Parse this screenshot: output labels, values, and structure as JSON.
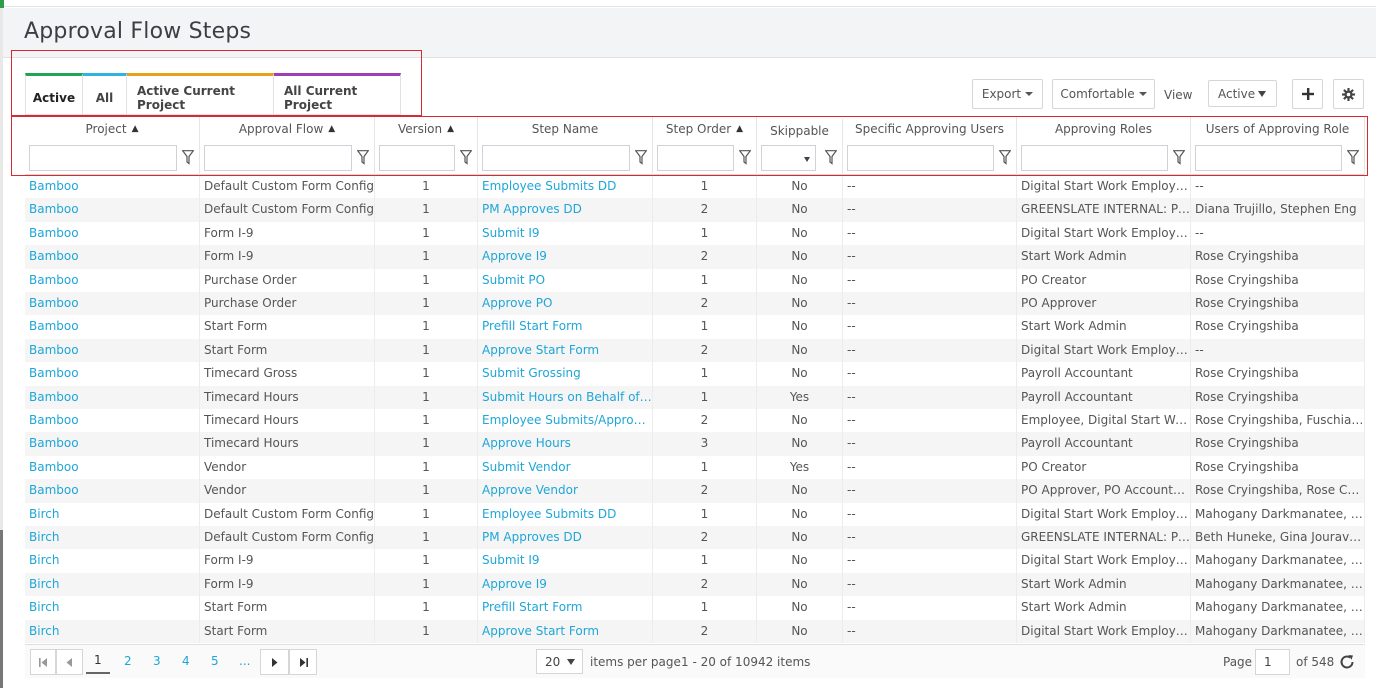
{
  "page": {
    "title": "Approval Flow Steps"
  },
  "tabs": [
    {
      "label": "Active",
      "active": true,
      "color": "#22a454"
    },
    {
      "label": "All",
      "color": "#2fb3e0"
    },
    {
      "label": "Active Current Project",
      "color": "#e8a21a"
    },
    {
      "label": "All Current Project",
      "color": "#9a3fb5"
    }
  ],
  "toolbar": {
    "export_label": "Export",
    "density_label": "Comfortable",
    "view_label": "View",
    "view_value": "Active",
    "add_icon": "plus-icon",
    "settings_icon": "gear-icon"
  },
  "columns": [
    {
      "label": "Project",
      "sorted": "asc"
    },
    {
      "label": "Approval Flow",
      "sorted": "asc"
    },
    {
      "label": "Version",
      "sorted": "asc"
    },
    {
      "label": "Step Name"
    },
    {
      "label": "Step Order",
      "sorted": "asc"
    },
    {
      "label": "Skippable",
      "select_filter": true
    },
    {
      "label": "Specific Approving Users"
    },
    {
      "label": "Approving Roles"
    },
    {
      "label": "Users of Approving Role"
    }
  ],
  "rows": [
    [
      "Bamboo",
      "Default Custom Form Config",
      "1",
      "Employee Submits DD",
      "1",
      "No",
      "--",
      "Digital Start Work Employee",
      "--"
    ],
    [
      "Bamboo",
      "Default Custom Form Config",
      "1",
      "PM Approves DD",
      "2",
      "No",
      "--",
      "GREENSLATE INTERNAL: Pri...",
      "Diana Trujillo, Stephen Eng"
    ],
    [
      "Bamboo",
      "Form I-9",
      "1",
      "Submit I9",
      "1",
      "No",
      "--",
      "Digital Start Work Employee",
      "--"
    ],
    [
      "Bamboo",
      "Form I-9",
      "1",
      "Approve I9",
      "2",
      "No",
      "--",
      "Start Work Admin",
      "Rose Cryingshiba"
    ],
    [
      "Bamboo",
      "Purchase Order",
      "1",
      "Submit PO",
      "1",
      "No",
      "--",
      "PO Creator",
      "Rose Cryingshiba"
    ],
    [
      "Bamboo",
      "Purchase Order",
      "1",
      "Approve PO",
      "2",
      "No",
      "--",
      "PO Approver",
      "Rose Cryingshiba"
    ],
    [
      "Bamboo",
      "Start Form",
      "1",
      "Prefill Start Form",
      "1",
      "No",
      "--",
      "Start Work Admin",
      "Rose Cryingshiba"
    ],
    [
      "Bamboo",
      "Start Form",
      "1",
      "Approve Start Form",
      "2",
      "No",
      "--",
      "Digital Start Work Employee",
      "--"
    ],
    [
      "Bamboo",
      "Timecard Gross",
      "1",
      "Submit Grossing",
      "1",
      "No",
      "--",
      "Payroll Accountant",
      "Rose Cryingshiba"
    ],
    [
      "Bamboo",
      "Timecard Hours",
      "1",
      "Submit Hours on Behalf of E...",
      "1",
      "Yes",
      "--",
      "Payroll Accountant",
      "Rose Cryingshiba"
    ],
    [
      "Bamboo",
      "Timecard Hours",
      "1",
      "Employee Submits/Approves...",
      "2",
      "No",
      "--",
      "Employee, Digital Start Work ...",
      "Rose Cryingshiba, Fuschia Cu..."
    ],
    [
      "Bamboo",
      "Timecard Hours",
      "1",
      "Approve Hours",
      "3",
      "No",
      "--",
      "Payroll Accountant",
      "Rose Cryingshiba"
    ],
    [
      "Bamboo",
      "Vendor",
      "1",
      "Submit Vendor",
      "1",
      "Yes",
      "--",
      "PO Creator",
      "Rose Cryingshiba"
    ],
    [
      "Bamboo",
      "Vendor",
      "1",
      "Approve Vendor",
      "2",
      "No",
      "--",
      "PO Approver, PO Accountant",
      "Rose Cryingshiba, Rose Cryin..."
    ],
    [
      "Birch",
      "Default Custom Form Config",
      "1",
      "Employee Submits DD",
      "1",
      "No",
      "--",
      "Digital Start Work Employee",
      "Mahogany Darkmanatee, Sa..."
    ],
    [
      "Birch",
      "Default Custom Form Config",
      "1",
      "PM Approves DD",
      "2",
      "No",
      "--",
      "GREENSLATE INTERNAL: Pri...",
      "Beth Huneke, Gina Jouravliov"
    ],
    [
      "Birch",
      "Form I-9",
      "1",
      "Submit I9",
      "1",
      "No",
      "--",
      "Digital Start Work Employee",
      "Mahogany Darkmanatee, Sa..."
    ],
    [
      "Birch",
      "Form I-9",
      "1",
      "Approve I9",
      "2",
      "No",
      "--",
      "Start Work Admin",
      "Mahogany Darkmanatee, Sa..."
    ],
    [
      "Birch",
      "Start Form",
      "1",
      "Prefill Start Form",
      "1",
      "No",
      "--",
      "Start Work Admin",
      "Mahogany Darkmanatee, Sa..."
    ],
    [
      "Birch",
      "Start Form",
      "1",
      "Approve Start Form",
      "2",
      "No",
      "--",
      "Digital Start Work Employee",
      "Mahogany Darkmanatee, Sa..."
    ]
  ],
  "pager": {
    "pages": [
      "1",
      "2",
      "3",
      "4",
      "5",
      "..."
    ],
    "current_page": "1",
    "page_size": "20",
    "items_per_page_label": "items per page",
    "range_text": "1 - 20 of 10942 items",
    "page_label": "Page",
    "page_value": "1",
    "of_pages": "of 548"
  }
}
